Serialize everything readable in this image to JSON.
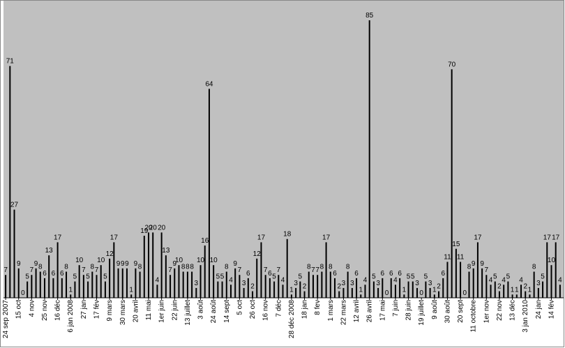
{
  "chart_data": {
    "type": "bar",
    "categories": [
      "24 sep 2007",
      null,
      null,
      "15 oct",
      null,
      null,
      "4 nov",
      null,
      null,
      "25 nov",
      null,
      null,
      "16 déc",
      null,
      null,
      "6 jan 2008",
      null,
      null,
      "27 jan",
      null,
      null,
      "17 fév",
      null,
      null,
      "9 mars",
      null,
      null,
      "30 mars",
      null,
      null,
      "20 avril",
      null,
      null,
      "11 mai",
      null,
      null,
      "1er juin",
      null,
      null,
      "22 juin",
      null,
      null,
      "13 juillet",
      null,
      null,
      "3 août",
      null,
      null,
      "24 août",
      null,
      null,
      "14 sept",
      null,
      null,
      "5 oct",
      null,
      null,
      "26 oct",
      null,
      null,
      "16 nov",
      null,
      null,
      "7 déc",
      null,
      null,
      "28 déc 2008",
      null,
      null,
      "18 jan",
      null,
      null,
      "8 fev",
      null,
      null,
      "1 mars",
      null,
      null,
      "22 mars",
      null,
      null,
      "12 avril",
      null,
      null,
      "26 avril",
      null,
      null,
      "17 mai",
      null,
      null,
      "7 juin",
      null,
      null,
      "28 juin",
      null,
      null,
      "19 juillet",
      null,
      null,
      "9 août",
      null,
      null,
      "30 août",
      null,
      null,
      "20 sept",
      null,
      null,
      "11 octobre",
      null,
      null,
      "1er nov",
      null,
      null,
      "22 nov",
      null,
      null,
      "13 déc",
      null,
      null,
      "3 jan 2010",
      null,
      null,
      "24 jan",
      null,
      null,
      "14 fév",
      null,
      null
    ],
    "values": [
      7,
      71,
      27,
      9,
      0,
      5,
      7,
      9,
      8,
      6,
      13,
      6,
      17,
      6,
      8,
      1,
      5,
      10,
      7,
      5,
      8,
      7,
      10,
      5,
      12,
      17,
      9,
      9,
      9,
      1,
      9,
      8,
      19,
      20,
      20,
      4,
      20,
      13,
      7,
      9,
      10,
      8,
      8,
      8,
      3,
      10,
      16,
      64,
      10,
      5,
      5,
      8,
      4,
      9,
      7,
      3,
      6,
      2,
      12,
      17,
      7,
      6,
      5,
      7,
      4,
      18,
      1,
      3,
      5,
      2,
      8,
      7,
      7,
      8,
      17,
      8,
      6,
      2,
      3,
      8,
      3,
      6,
      1,
      4,
      85,
      5,
      3,
      6,
      0,
      6,
      4,
      6,
      1,
      5,
      5,
      3,
      0,
      5,
      3,
      1,
      2,
      6,
      11,
      70,
      15,
      11,
      0,
      8,
      9,
      17,
      9,
      7,
      4,
      5,
      2,
      4,
      5,
      1,
      1,
      4,
      2,
      1,
      8,
      3,
      5,
      17,
      10,
      17,
      4
    ],
    "color": "#000000",
    "ylim": [
      0,
      91
    ]
  }
}
